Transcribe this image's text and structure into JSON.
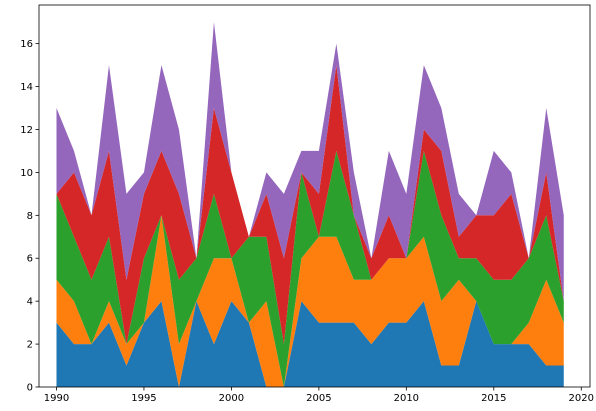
{
  "chart_data": {
    "type": "area",
    "stacked": true,
    "title": "",
    "xlabel": "",
    "ylabel": "",
    "xlim": [
      1989.0,
      2020.5
    ],
    "ylim": [
      0,
      17.8
    ],
    "grid": false,
    "legend": "none",
    "x_ticks": [
      1990,
      1995,
      2000,
      2005,
      2010,
      2015,
      2020
    ],
    "y_ticks": [
      0,
      2,
      4,
      6,
      8,
      10,
      12,
      14,
      16
    ],
    "x": [
      1990,
      1991,
      1992,
      1993,
      1994,
      1995,
      1996,
      1997,
      1998,
      1999,
      2000,
      2001,
      2002,
      2003,
      2004,
      2005,
      2006,
      2007,
      2008,
      2009,
      2010,
      2011,
      2012,
      2013,
      2014,
      2015,
      2016,
      2017,
      2018,
      2019
    ],
    "series": [
      {
        "color": "#1f77b4",
        "values": [
          3,
          2,
          2,
          3,
          1,
          3,
          4,
          0,
          4,
          2,
          4,
          3,
          0,
          0,
          4,
          3,
          3,
          3,
          2,
          3,
          3,
          4,
          1,
          1,
          4,
          2,
          2,
          2,
          1,
          1
        ]
      },
      {
        "color": "#ff7f0e",
        "values": [
          2,
          2,
          0,
          1,
          1,
          0,
          4,
          2,
          0,
          4,
          2,
          0,
          4,
          0,
          2,
          4,
          4,
          2,
          3,
          3,
          3,
          3,
          3,
          4,
          0,
          0,
          0,
          1,
          4,
          2
        ]
      },
      {
        "color": "#2ca02c",
        "values": [
          4,
          3,
          3,
          3,
          0,
          3,
          0,
          3,
          2,
          3,
          0,
          4,
          3,
          2,
          4,
          0,
          4,
          3,
          0,
          0,
          0,
          4,
          4,
          1,
          2,
          3,
          3,
          3,
          3,
          1
        ]
      },
      {
        "color": "#d62728",
        "values": [
          0,
          3,
          3,
          4,
          3,
          3,
          3,
          4,
          0,
          4,
          4,
          0,
          2,
          4,
          0,
          2,
          4,
          0,
          1,
          2,
          0,
          1,
          3,
          1,
          2,
          3,
          4,
          0,
          2,
          0
        ]
      },
      {
        "color": "#9467bd",
        "values": [
          4,
          1,
          0,
          4,
          4,
          1,
          4,
          3,
          0,
          4,
          0,
          0,
          1,
          3,
          1,
          2,
          1,
          2,
          0,
          3,
          3,
          3,
          2,
          2,
          0,
          3,
          1,
          0,
          3,
          4
        ]
      }
    ]
  }
}
